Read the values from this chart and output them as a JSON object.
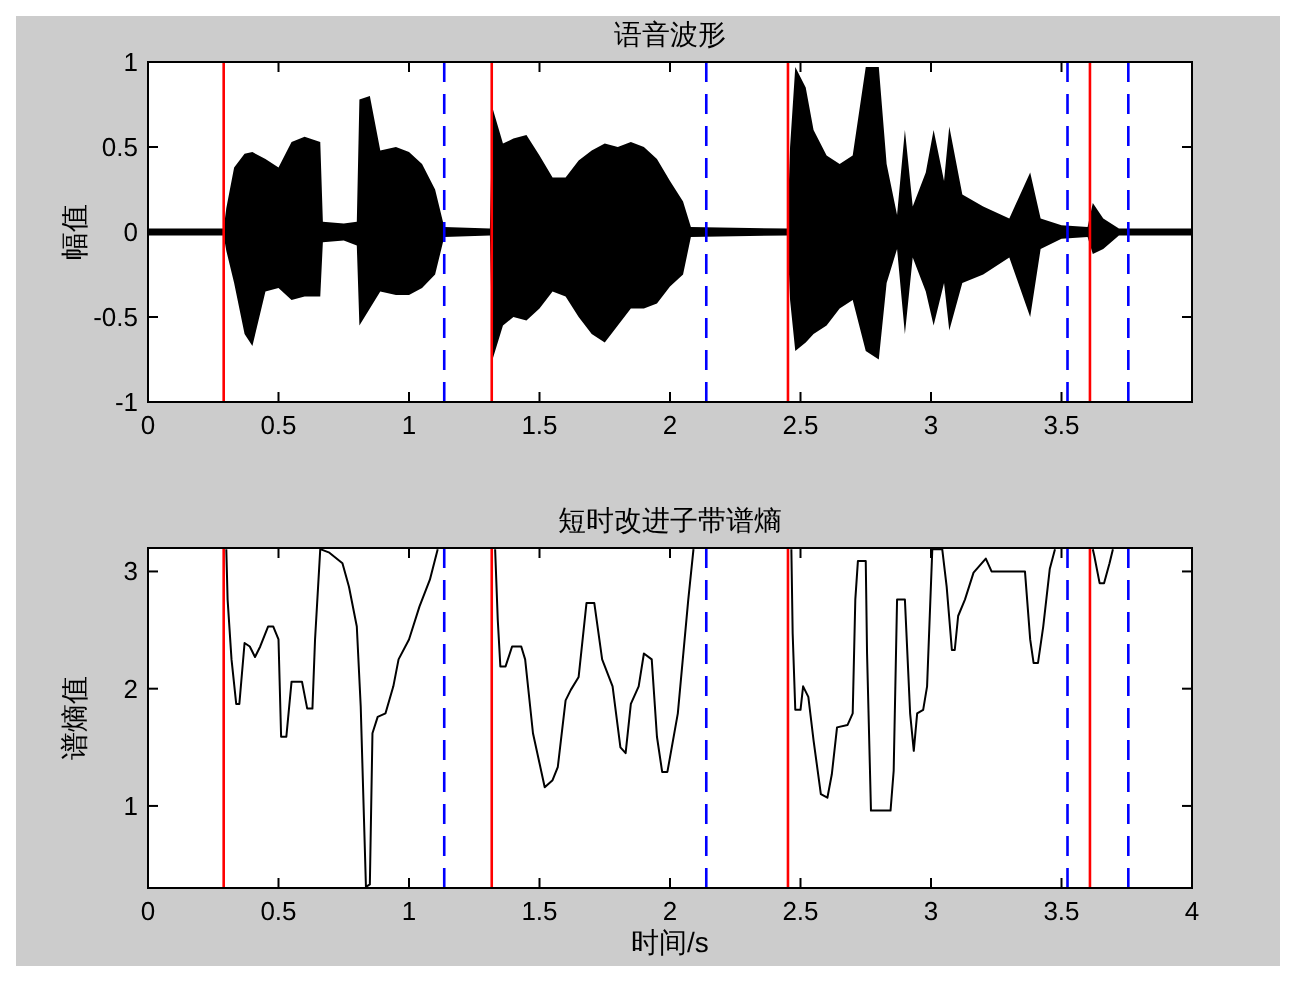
{
  "chart_data": [
    {
      "type": "area",
      "title": "语音波形",
      "ylabel": "幅值",
      "x": [
        0,
        0.29,
        0.3,
        0.33,
        0.37,
        0.4,
        0.45,
        0.5,
        0.55,
        0.6,
        0.66,
        0.67,
        0.75,
        0.8,
        0.81,
        0.85,
        0.89,
        0.95,
        1.0,
        1.05,
        1.1,
        1.135,
        1.31,
        1.32,
        1.36,
        1.4,
        1.45,
        1.5,
        1.55,
        1.6,
        1.65,
        1.7,
        1.75,
        1.8,
        1.85,
        1.9,
        1.95,
        2.0,
        2.05,
        2.08,
        2.45,
        2.46,
        2.48,
        2.52,
        2.55,
        2.6,
        2.65,
        2.7,
        2.75,
        2.8,
        2.83,
        2.87,
        2.9,
        2.93,
        2.98,
        3.01,
        3.05,
        3.07,
        3.12,
        3.2,
        3.3,
        3.38,
        3.42,
        3.5,
        3.6,
        3.62,
        3.66,
        3.72,
        4.0
      ],
      "series": [
        {
          "color": "#000000",
          "values": [
            0.02,
            0.02,
            0.14,
            0.38,
            0.46,
            0.47,
            0.43,
            0.38,
            0.53,
            0.56,
            0.53,
            0.06,
            0.05,
            0.06,
            0.78,
            0.8,
            0.48,
            0.5,
            0.47,
            0.4,
            0.25,
            0.03,
            0.02,
            0.73,
            0.52,
            0.55,
            0.57,
            0.45,
            0.32,
            0.32,
            0.42,
            0.48,
            0.52,
            0.5,
            0.53,
            0.5,
            0.43,
            0.3,
            0.18,
            0.03,
            0.02,
            0.5,
            0.97,
            0.85,
            0.6,
            0.45,
            0.4,
            0.45,
            0.97,
            0.97,
            0.4,
            0.1,
            0.6,
            0.15,
            0.35,
            0.6,
            0.3,
            0.62,
            0.22,
            0.15,
            0.08,
            0.35,
            0.08,
            0.04,
            0.03,
            0.17,
            0.08,
            0.02,
            0.02
          ]
        },
        {
          "color": "#000000",
          "values": [
            -0.02,
            -0.02,
            -0.11,
            -0.3,
            -0.6,
            -0.67,
            -0.35,
            -0.33,
            -0.4,
            -0.38,
            -0.38,
            -0.06,
            -0.05,
            -0.08,
            -0.55,
            -0.45,
            -0.35,
            -0.37,
            -0.37,
            -0.33,
            -0.25,
            -0.03,
            -0.02,
            -0.75,
            -0.55,
            -0.5,
            -0.52,
            -0.45,
            -0.35,
            -0.38,
            -0.5,
            -0.6,
            -0.65,
            -0.55,
            -0.45,
            -0.45,
            -0.42,
            -0.32,
            -0.25,
            -0.03,
            -0.02,
            -0.4,
            -0.7,
            -0.65,
            -0.6,
            -0.55,
            -0.45,
            -0.4,
            -0.7,
            -0.75,
            -0.3,
            -0.1,
            -0.6,
            -0.15,
            -0.35,
            -0.55,
            -0.3,
            -0.58,
            -0.3,
            -0.25,
            -0.15,
            -0.5,
            -0.1,
            -0.04,
            -0.03,
            -0.13,
            -0.1,
            -0.02,
            -0.02
          ]
        }
      ],
      "xlim": [
        0,
        4
      ],
      "ylim": [
        -1,
        1
      ],
      "xticks": [
        0,
        0.5,
        1,
        1.5,
        2,
        2.5,
        3,
        3.5
      ],
      "yticks": [
        -1,
        -0.5,
        0,
        0.5,
        1
      ],
      "ref_lines": [
        {
          "axis": "x",
          "value": 0.29,
          "color": "#ff0000",
          "line_style": "solid"
        },
        {
          "axis": "x",
          "value": 1.135,
          "color": "#0000ff",
          "line_style": "dashed"
        },
        {
          "axis": "x",
          "value": 1.317,
          "color": "#ff0000",
          "line_style": "solid"
        },
        {
          "axis": "x",
          "value": 2.139,
          "color": "#0000ff",
          "line_style": "dashed"
        },
        {
          "axis": "x",
          "value": 2.452,
          "color": "#ff0000",
          "line_style": "solid"
        },
        {
          "axis": "x",
          "value": 3.523,
          "color": "#0000ff",
          "line_style": "dashed"
        },
        {
          "axis": "x",
          "value": 3.609,
          "color": "#ff0000",
          "line_style": "solid"
        },
        {
          "axis": "x",
          "value": 3.756,
          "color": "#0000ff",
          "line_style": "dashed"
        }
      ]
    },
    {
      "type": "line",
      "title": "短时改进子带谱熵",
      "xlabel": "时间/s",
      "ylabel": "谱熵值",
      "line_style": "solid",
      "series": [
        {
          "color": "#000000",
          "x": [
            0.3,
            0.305,
            0.32,
            0.338,
            0.35,
            0.37,
            0.39,
            0.41,
            0.43,
            0.46,
            0.48,
            0.5,
            0.51,
            0.53,
            0.55,
            0.59,
            0.61,
            0.63,
            0.64,
            0.66,
            0.695,
            0.745,
            0.77,
            0.8,
            0.815,
            0.835,
            0.85,
            0.86,
            0.88,
            0.91,
            0.94,
            0.96,
            1.0,
            1.04,
            1.08,
            1.11
          ],
          "values": [
            3.19,
            2.76,
            2.25,
            1.87,
            1.87,
            2.39,
            2.36,
            2.27,
            2.36,
            2.53,
            2.53,
            2.42,
            1.59,
            1.59,
            2.06,
            2.06,
            1.83,
            1.83,
            2.42,
            3.19,
            3.16,
            3.07,
            2.87,
            2.53,
            1.85,
            0.31,
            0.33,
            1.62,
            1.76,
            1.79,
            2.02,
            2.25,
            2.42,
            2.7,
            2.93,
            3.19
          ]
        },
        {
          "color": "#000000",
          "x": [
            1.33,
            1.34,
            1.35,
            1.37,
            1.395,
            1.43,
            1.445,
            1.475,
            1.52,
            1.55,
            1.57,
            1.6,
            1.62,
            1.65,
            1.68,
            1.71,
            1.74,
            1.78,
            1.81,
            1.83,
            1.85,
            1.88,
            1.9,
            1.93,
            1.95,
            1.97,
            1.99,
            2.03,
            2.07,
            2.09
          ],
          "values": [
            3.19,
            2.59,
            2.19,
            2.19,
            2.36,
            2.36,
            2.25,
            1.62,
            1.16,
            1.22,
            1.33,
            1.9,
            1.99,
            2.1,
            2.73,
            2.73,
            2.25,
            2.02,
            1.5,
            1.45,
            1.87,
            2.02,
            2.3,
            2.25,
            1.59,
            1.29,
            1.29,
            1.79,
            2.76,
            3.19
          ]
        },
        {
          "color": "#000000",
          "x": [
            2.465,
            2.47,
            2.48,
            2.5,
            2.51,
            2.53,
            2.55,
            2.578,
            2.603,
            2.62,
            2.64,
            2.68,
            2.7,
            2.71,
            2.72,
            2.75,
            2.755,
            2.77,
            2.845,
            2.857,
            2.87,
            2.9,
            2.92,
            2.934,
            2.947,
            2.97,
            2.985,
            3.005,
            3.043,
            3.06,
            3.08,
            3.091,
            3.104,
            3.13,
            3.163,
            3.21,
            3.232,
            3.36,
            3.38,
            3.393,
            3.41,
            3.43,
            3.455,
            3.475
          ],
          "values": [
            3.19,
            2.47,
            1.82,
            1.82,
            2.02,
            1.93,
            1.56,
            1.1,
            1.07,
            1.27,
            1.67,
            1.69,
            1.79,
            2.76,
            3.09,
            3.09,
            2.3,
            0.96,
            0.96,
            1.3,
            2.76,
            2.76,
            1.79,
            1.47,
            1.79,
            1.82,
            2.02,
            3.19,
            3.19,
            2.87,
            2.33,
            2.33,
            2.62,
            2.76,
            2.99,
            3.11,
            3.0,
            3.0,
            2.42,
            2.22,
            2.22,
            2.53,
            3.02,
            3.19
          ]
        },
        {
          "color": "#000000",
          "x": [
            3.62,
            3.626,
            3.646,
            3.663,
            3.684,
            3.697
          ],
          "values": [
            3.19,
            3.13,
            2.9,
            2.9,
            3.07,
            3.19
          ]
        }
      ],
      "xlim": [
        0,
        4
      ],
      "ylim": [
        0.3,
        3.2
      ],
      "xticks": [
        0,
        0.5,
        1,
        1.5,
        2,
        2.5,
        3,
        3.5,
        4
      ],
      "yticks": [
        1,
        2,
        3
      ],
      "ref_lines": [
        {
          "axis": "x",
          "value": 0.29,
          "color": "#ff0000",
          "line_style": "solid"
        },
        {
          "axis": "x",
          "value": 1.135,
          "color": "#0000ff",
          "line_style": "dashed"
        },
        {
          "axis": "x",
          "value": 1.317,
          "color": "#ff0000",
          "line_style": "solid"
        },
        {
          "axis": "x",
          "value": 2.139,
          "color": "#0000ff",
          "line_style": "dashed"
        },
        {
          "axis": "x",
          "value": 2.452,
          "color": "#ff0000",
          "line_style": "solid"
        },
        {
          "axis": "x",
          "value": 3.523,
          "color": "#0000ff",
          "line_style": "dashed"
        },
        {
          "axis": "x",
          "value": 3.609,
          "color": "#ff0000",
          "line_style": "solid"
        },
        {
          "axis": "x",
          "value": 3.756,
          "color": "#0000ff",
          "line_style": "dashed"
        }
      ]
    }
  ]
}
